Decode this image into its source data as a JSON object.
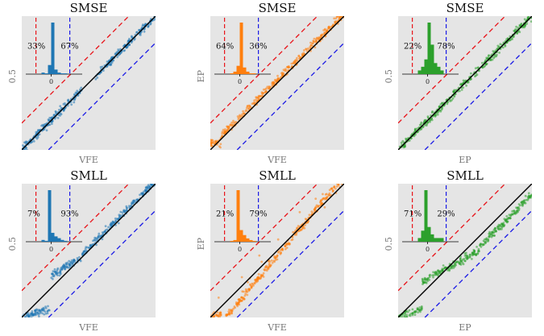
{
  "colors": {
    "blue": "#1f77b4",
    "orange": "#ff7f0e",
    "green": "#2ca02c",
    "bg": "#e5e5e5",
    "red": "#e8141a",
    "refblue": "#1a1ae6"
  },
  "chart_data": [
    {
      "type": "scatter",
      "title": "SMSE",
      "xlabel": "VFE",
      "ylabel": "0.5",
      "color": "blue",
      "pct_left": "33%",
      "pct_right": "67%",
      "hist_zero": "0",
      "curve": "c1",
      "hist": [
        2,
        1,
        12,
        68,
        6,
        2,
        1,
        1
      ]
    },
    {
      "type": "scatter",
      "title": "SMSE",
      "xlabel": "VFE",
      "ylabel": "EP",
      "color": "orange",
      "pct_left": "64%",
      "pct_right": "36%",
      "hist_zero": "0",
      "curve": "c2",
      "hist": [
        1,
        3,
        10,
        62,
        8,
        3,
        1,
        1
      ]
    },
    {
      "type": "scatter",
      "title": "SMSE",
      "xlabel": "EP",
      "ylabel": "0.5",
      "color": "green",
      "pct_left": "22%",
      "pct_right": "78%",
      "hist_zero": "0",
      "curve": "c3",
      "hist": [
        1,
        2,
        4,
        14,
        8,
        3,
        2,
        1
      ]
    },
    {
      "type": "scatter",
      "title": "SMLL",
      "xlabel": "VFE",
      "ylabel": "0.5",
      "color": "blue",
      "pct_left": "7%",
      "pct_right": "93%",
      "hist_zero": "0",
      "curve": "c4",
      "hist": [
        2,
        1,
        58,
        10,
        6,
        4,
        2,
        1
      ]
    },
    {
      "type": "scatter",
      "title": "SMLL",
      "xlabel": "VFE",
      "ylabel": "EP",
      "color": "orange",
      "pct_left": "21%",
      "pct_right": "79%",
      "hist_zero": "0",
      "curve": "c5",
      "hist": [
        1,
        2,
        62,
        14,
        8,
        4,
        2,
        1
      ]
    },
    {
      "type": "scatter",
      "title": "SMLL",
      "xlabel": "EP",
      "ylabel": "0.5",
      "color": "green",
      "pct_left": "71%",
      "pct_right": "29%",
      "hist_zero": "0",
      "curve": "c6",
      "hist": [
        1,
        3,
        14,
        4,
        2,
        1,
        1,
        1
      ]
    }
  ]
}
